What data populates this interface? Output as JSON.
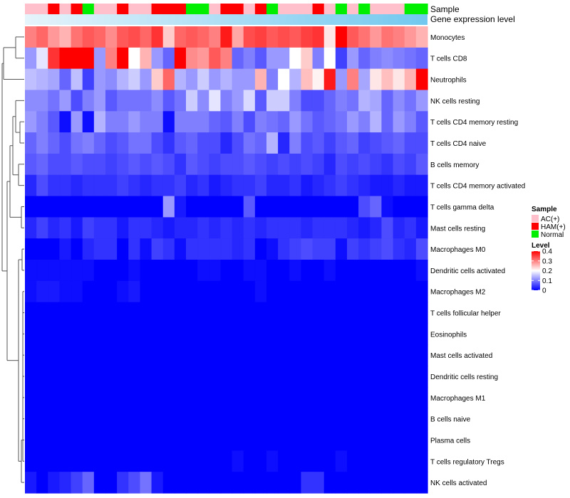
{
  "chart_data": {
    "type": "heatmap",
    "title": "",
    "annotation_labels": {
      "sample": "Sample",
      "expression": "Gene expression level"
    },
    "rows": [
      "Monocytes",
      "T cells CD8",
      "Neutrophils",
      "NK cells resting",
      "T cells CD4 memory resting",
      "T cells CD4 naive",
      "B cells memory",
      "T cells CD4 memory activated",
      "T cells gamma delta",
      "Mast cells resting",
      "Macrophages M0",
      "Dendritic cells activated",
      "Macrophages M2",
      "T cells follicular helper",
      "Eosinophils",
      "Mast cells activated",
      "Dendritic cells resting",
      "Macrophages M1",
      "B cells naive",
      "Plasma cells",
      "T cells regulatory  Tregs",
      "NK cells activated"
    ],
    "sample_groups": [
      "AC",
      "AC",
      "HAM",
      "AC",
      "HAM",
      "Normal",
      "AC",
      "AC",
      "HAM",
      "AC",
      "AC",
      "HAM",
      "HAM",
      "HAM",
      "Normal",
      "Normal",
      "AC",
      "HAM",
      "HAM",
      "AC",
      "HAM",
      "Normal",
      "AC",
      "AC",
      "AC",
      "HAM",
      "AC",
      "Normal",
      "AC",
      "Normal",
      "AC",
      "AC",
      "AC",
      "Normal",
      "Normal"
    ],
    "values": [
      [
        0.3,
        0.32,
        0.28,
        0.26,
        0.31,
        0.33,
        0.32,
        0.29,
        0.33,
        0.34,
        0.32,
        0.36,
        0.24,
        0.32,
        0.33,
        0.32,
        0.3,
        0.38,
        0.27,
        0.34,
        0.35,
        0.33,
        0.34,
        0.33,
        0.35,
        0.36,
        0.22,
        0.4,
        0.33,
        0.31,
        0.28,
        0.31,
        0.3,
        0.28,
        0.26
      ],
      [
        0.12,
        0.18,
        0.36,
        0.4,
        0.4,
        0.4,
        0.12,
        0.3,
        0.4,
        0.2,
        0.26,
        0.12,
        0.08,
        0.4,
        0.29,
        0.28,
        0.33,
        0.3,
        0.08,
        0.1,
        0.07,
        0.12,
        0.12,
        0.2,
        0.24,
        0.1,
        0.2,
        0.05,
        0.12,
        0.08,
        0.1,
        0.11,
        0.1,
        0.09,
        0.08
      ],
      [
        0.15,
        0.14,
        0.13,
        0.08,
        0.15,
        0.05,
        0.12,
        0.11,
        0.14,
        0.16,
        0.12,
        0.24,
        0.32,
        0.14,
        0.12,
        0.16,
        0.12,
        0.14,
        0.12,
        0.12,
        0.26,
        0.1,
        0.2,
        0.14,
        0.25,
        0.21,
        0.38,
        0.12,
        0.3,
        0.13,
        0.22,
        0.25,
        0.22,
        0.26,
        0.4
      ],
      [
        0.11,
        0.11,
        0.09,
        0.12,
        0.06,
        0.1,
        0.12,
        0.07,
        0.09,
        0.09,
        0.09,
        0.11,
        0.07,
        0.09,
        0.16,
        0.11,
        0.18,
        0.1,
        0.12,
        0.17,
        0.07,
        0.16,
        0.16,
        0.1,
        0.06,
        0.06,
        0.08,
        0.1,
        0.09,
        0.14,
        0.13,
        0.08,
        0.11,
        0.09,
        0.12
      ],
      [
        0.12,
        0.1,
        0.07,
        0.01,
        0.12,
        0.01,
        0.14,
        0.1,
        0.1,
        0.12,
        0.1,
        0.1,
        0.01,
        0.1,
        0.1,
        0.1,
        0.08,
        0.07,
        0.1,
        0.06,
        0.1,
        0.09,
        0.08,
        0.12,
        0.09,
        0.07,
        0.08,
        0.09,
        0.12,
        0.1,
        0.14,
        0.08,
        0.12,
        0.1,
        0.07
      ],
      [
        0.08,
        0.1,
        0.08,
        0.06,
        0.09,
        0.1,
        0.08,
        0.06,
        0.07,
        0.09,
        0.09,
        0.06,
        0.04,
        0.07,
        0.08,
        0.06,
        0.06,
        0.03,
        0.06,
        0.09,
        0.08,
        0.14,
        0.03,
        0.1,
        0.06,
        0.07,
        0.05,
        0.07,
        0.08,
        0.05,
        0.06,
        0.07,
        0.08,
        0.06,
        0.06
      ],
      [
        0.07,
        0.08,
        0.06,
        0.06,
        0.07,
        0.06,
        0.06,
        0.05,
        0.06,
        0.07,
        0.06,
        0.07,
        0.06,
        0.04,
        0.07,
        0.06,
        0.05,
        0.06,
        0.06,
        0.07,
        0.06,
        0.05,
        0.06,
        0.05,
        0.06,
        0.05,
        0.03,
        0.06,
        0.05,
        0.06,
        0.05,
        0.04,
        0.06,
        0.05,
        0.07
      ],
      [
        0.03,
        0.06,
        0.04,
        0.04,
        0.03,
        0.04,
        0.04,
        0.04,
        0.05,
        0.04,
        0.03,
        0.04,
        0.04,
        0.05,
        0.03,
        0.04,
        0.02,
        0.03,
        0.04,
        0.04,
        0.05,
        0.03,
        0.03,
        0.04,
        0.02,
        0.03,
        0.04,
        0.05,
        0.04,
        0.03,
        0.02,
        0.02,
        0.03,
        0.02,
        0.02
      ],
      [
        0.0,
        0.0,
        0.0,
        0.0,
        0.0,
        0.0,
        0.0,
        0.0,
        0.0,
        0.0,
        0.0,
        0.0,
        0.12,
        0.02,
        0.0,
        0.0,
        0.0,
        0.0,
        0.0,
        0.07,
        0.0,
        0.0,
        0.0,
        0.0,
        0.0,
        0.0,
        0.0,
        0.0,
        0.0,
        0.06,
        0.08,
        0.01,
        0.0,
        0.0,
        0.0
      ],
      [
        0.03,
        0.05,
        0.03,
        0.04,
        0.02,
        0.05,
        0.04,
        0.04,
        0.02,
        0.04,
        0.04,
        0.03,
        0.02,
        0.03,
        0.03,
        0.04,
        0.03,
        0.04,
        0.03,
        0.04,
        0.03,
        0.04,
        0.04,
        0.04,
        0.03,
        0.04,
        0.04,
        0.04,
        0.03,
        0.02,
        0.03,
        0.06,
        0.03,
        0.04,
        0.02
      ],
      [
        0.0,
        0.0,
        0.0,
        0.02,
        0.0,
        0.03,
        0.04,
        0.04,
        0.0,
        0.04,
        0.01,
        0.05,
        0.04,
        0.01,
        0.04,
        0.04,
        0.04,
        0.04,
        0.03,
        0.04,
        0.0,
        0.01,
        0.04,
        0.05,
        0.06,
        0.05,
        0.05,
        0.01,
        0.05,
        0.04,
        0.05,
        0.06,
        0.04,
        0.03,
        0.06
      ],
      [
        0.01,
        0.01,
        0.01,
        0.01,
        0.01,
        0.01,
        0.0,
        0.0,
        0.0,
        0.01,
        0.0,
        0.0,
        0.0,
        0.0,
        0.0,
        0.01,
        0.01,
        0.0,
        0.0,
        0.01,
        0.01,
        0.0,
        0.0,
        0.01,
        0.0,
        0.0,
        0.01,
        0.0,
        0.0,
        0.0,
        0.0,
        0.0,
        0.0,
        0.0,
        0.01
      ],
      [
        0.01,
        0.02,
        0.02,
        0.01,
        0.01,
        0.0,
        0.0,
        0.0,
        0.01,
        0.02,
        0.0,
        0.0,
        0.0,
        0.0,
        0.0,
        0.0,
        0.0,
        0.0,
        0.0,
        0.0,
        0.01,
        0.0,
        0.0,
        0.0,
        0.0,
        0.0,
        0.0,
        0.0,
        0.0,
        0.0,
        0.0,
        0.0,
        0.0,
        0.0,
        0.0
      ],
      [
        0.0,
        0.0,
        0.0,
        0.0,
        0.0,
        0.0,
        0.0,
        0.0,
        0.0,
        0.0,
        0.0,
        0.0,
        0.0,
        0.0,
        0.0,
        0.0,
        0.0,
        0.0,
        0.0,
        0.0,
        0.0,
        0.0,
        0.0,
        0.0,
        0.0,
        0.0,
        0.0,
        0.0,
        0.0,
        0.0,
        0.0,
        0.0,
        0.0,
        0.0,
        0.0
      ],
      [
        0.0,
        0.0,
        0.0,
        0.0,
        0.0,
        0.0,
        0.0,
        0.0,
        0.0,
        0.0,
        0.0,
        0.0,
        0.0,
        0.0,
        0.0,
        0.0,
        0.0,
        0.0,
        0.0,
        0.0,
        0.0,
        0.0,
        0.0,
        0.0,
        0.0,
        0.0,
        0.0,
        0.0,
        0.0,
        0.0,
        0.0,
        0.0,
        0.0,
        0.0,
        0.0
      ],
      [
        0.0,
        0.0,
        0.0,
        0.0,
        0.0,
        0.0,
        0.0,
        0.0,
        0.0,
        0.0,
        0.0,
        0.0,
        0.0,
        0.0,
        0.0,
        0.0,
        0.0,
        0.0,
        0.0,
        0.0,
        0.0,
        0.0,
        0.0,
        0.0,
        0.0,
        0.0,
        0.0,
        0.0,
        0.0,
        0.0,
        0.0,
        0.0,
        0.0,
        0.0,
        0.0
      ],
      [
        0.0,
        0.0,
        0.0,
        0.0,
        0.0,
        0.0,
        0.0,
        0.0,
        0.0,
        0.0,
        0.0,
        0.0,
        0.0,
        0.0,
        0.0,
        0.0,
        0.0,
        0.0,
        0.0,
        0.0,
        0.0,
        0.0,
        0.0,
        0.0,
        0.0,
        0.0,
        0.0,
        0.0,
        0.0,
        0.0,
        0.0,
        0.0,
        0.0,
        0.0,
        0.0
      ],
      [
        0.0,
        0.0,
        0.0,
        0.0,
        0.0,
        0.0,
        0.0,
        0.0,
        0.0,
        0.0,
        0.0,
        0.0,
        0.0,
        0.0,
        0.0,
        0.0,
        0.0,
        0.0,
        0.0,
        0.0,
        0.0,
        0.0,
        0.0,
        0.0,
        0.0,
        0.0,
        0.0,
        0.0,
        0.0,
        0.0,
        0.0,
        0.0,
        0.0,
        0.0,
        0.0
      ],
      [
        0.0,
        0.0,
        0.0,
        0.0,
        0.0,
        0.0,
        0.0,
        0.0,
        0.0,
        0.0,
        0.0,
        0.0,
        0.0,
        0.0,
        0.0,
        0.0,
        0.0,
        0.0,
        0.0,
        0.0,
        0.0,
        0.0,
        0.0,
        0.0,
        0.0,
        0.0,
        0.0,
        0.0,
        0.0,
        0.0,
        0.0,
        0.0,
        0.0,
        0.0,
        0.0
      ],
      [
        0.0,
        0.0,
        0.0,
        0.0,
        0.0,
        0.0,
        0.0,
        0.0,
        0.0,
        0.0,
        0.0,
        0.0,
        0.0,
        0.0,
        0.0,
        0.0,
        0.0,
        0.0,
        0.0,
        0.0,
        0.0,
        0.0,
        0.0,
        0.0,
        0.0,
        0.0,
        0.0,
        0.0,
        0.0,
        0.0,
        0.0,
        0.0,
        0.0,
        0.0,
        0.0
      ],
      [
        0.0,
        0.0,
        0.0,
        0.0,
        0.0,
        0.0,
        0.0,
        0.0,
        0.0,
        0.0,
        0.0,
        0.0,
        0.0,
        0.0,
        0.0,
        0.0,
        0.0,
        0.0,
        0.01,
        0.0,
        0.0,
        0.01,
        0.0,
        0.0,
        0.0,
        0.0,
        0.0,
        0.01,
        0.0,
        0.0,
        0.0,
        0.0,
        0.0,
        0.0,
        0.0
      ],
      [
        0.02,
        0.0,
        0.02,
        0.03,
        0.05,
        0.08,
        0.0,
        0.0,
        0.04,
        0.06,
        0.09,
        0.02,
        0.0,
        0.0,
        0.0,
        0.0,
        0.0,
        0.0,
        0.0,
        0.0,
        0.0,
        0.0,
        0.0,
        0.0,
        0.04,
        0.04,
        0.0,
        0.0,
        0.0,
        0.0,
        0.0,
        0.0,
        0.0,
        0.0,
        0.0
      ]
    ],
    "legend": {
      "sample_title": "Sample",
      "sample_items": [
        {
          "key": "AC",
          "label": "AC(+)",
          "color": "#ffc0cb"
        },
        {
          "key": "HAM",
          "label": "HAM(+)",
          "color": "#ff0000"
        },
        {
          "key": "Normal",
          "label": "Normal",
          "color": "#00ee00"
        }
      ],
      "level_title": "Level",
      "level_ticks": [
        {
          "value": 0.4,
          "label": "0.4"
        },
        {
          "value": 0.3,
          "label": "0.3"
        },
        {
          "value": 0.2,
          "label": "0.2"
        },
        {
          "value": 0.1,
          "label": "0.1"
        },
        {
          "value": 0.0,
          "label": "0"
        }
      ]
    },
    "color_scale": {
      "min": 0,
      "mid": 0.2,
      "max": 0.4,
      "low": "#0000ff",
      "midColor": "#ffffff",
      "high": "#ff0000"
    },
    "expression_bar_colors": {
      "start": "#e6f4fb",
      "end": "#72c8ef"
    }
  }
}
